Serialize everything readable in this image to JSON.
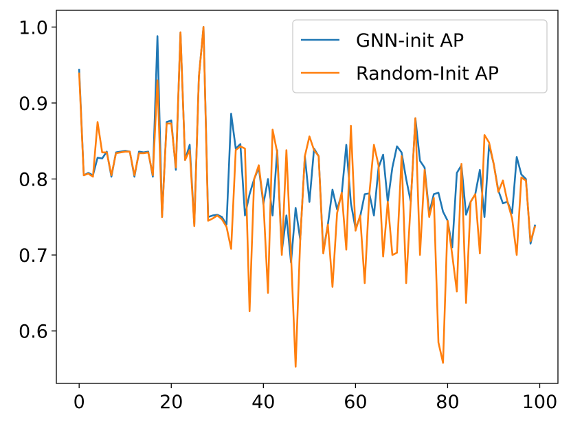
{
  "chart_data": {
    "type": "line",
    "x": [
      0,
      1,
      2,
      3,
      4,
      5,
      6,
      7,
      8,
      9,
      10,
      11,
      12,
      13,
      14,
      15,
      16,
      17,
      18,
      19,
      20,
      21,
      22,
      23,
      24,
      25,
      26,
      27,
      28,
      29,
      30,
      31,
      32,
      33,
      34,
      35,
      36,
      37,
      38,
      39,
      40,
      41,
      42,
      43,
      44,
      45,
      46,
      47,
      48,
      49,
      50,
      51,
      52,
      53,
      54,
      55,
      56,
      57,
      58,
      59,
      60,
      61,
      62,
      63,
      64,
      65,
      66,
      67,
      68,
      69,
      70,
      71,
      72,
      73,
      74,
      75,
      76,
      77,
      78,
      79,
      80,
      81,
      82,
      83,
      84,
      85,
      86,
      87,
      88,
      89,
      90,
      91,
      92,
      93,
      94,
      95,
      96,
      97,
      98,
      99
    ],
    "series": [
      {
        "name": "GNN-init AP",
        "color": "#1f77b4",
        "values": [
          0.945,
          0.805,
          0.808,
          0.805,
          0.828,
          0.827,
          0.836,
          0.803,
          0.835,
          0.836,
          0.837,
          0.836,
          0.803,
          0.836,
          0.835,
          0.836,
          0.803,
          0.988,
          0.75,
          0.875,
          0.877,
          0.812,
          0.993,
          0.825,
          0.845,
          0.74,
          0.935,
          1.0,
          0.75,
          0.752,
          0.753,
          0.75,
          0.74,
          0.886,
          0.84,
          0.846,
          0.752,
          0.78,
          0.8,
          0.815,
          0.767,
          0.8,
          0.752,
          0.838,
          0.705,
          0.752,
          0.69,
          0.762,
          0.72,
          0.83,
          0.77,
          0.84,
          0.83,
          0.705,
          0.74,
          0.786,
          0.76,
          0.78,
          0.845,
          0.768,
          0.735,
          0.75,
          0.78,
          0.781,
          0.752,
          0.815,
          0.832,
          0.77,
          0.815,
          0.843,
          0.835,
          0.8,
          0.77,
          0.88,
          0.824,
          0.815,
          0.755,
          0.78,
          0.782,
          0.757,
          0.745,
          0.71,
          0.808,
          0.818,
          0.753,
          0.77,
          0.78,
          0.812,
          0.75,
          0.845,
          0.82,
          0.785,
          0.768,
          0.77,
          0.755,
          0.829,
          0.806,
          0.8,
          0.715,
          0.74
        ]
      },
      {
        "name": "Random-Init AP",
        "color": "#ff7f0e",
        "values": [
          0.94,
          0.805,
          0.807,
          0.803,
          0.875,
          0.835,
          0.835,
          0.805,
          0.834,
          0.835,
          0.836,
          0.836,
          0.805,
          0.834,
          0.834,
          0.835,
          0.805,
          0.93,
          0.75,
          0.873,
          0.873,
          0.815,
          0.993,
          0.825,
          0.838,
          0.738,
          0.935,
          1.0,
          0.745,
          0.748,
          0.752,
          0.747,
          0.737,
          0.708,
          0.838,
          0.843,
          0.84,
          0.626,
          0.8,
          0.818,
          0.77,
          0.65,
          0.865,
          0.835,
          0.7,
          0.838,
          0.7,
          0.553,
          0.72,
          0.83,
          0.856,
          0.838,
          0.83,
          0.702,
          0.74,
          0.658,
          0.755,
          0.782,
          0.707,
          0.87,
          0.732,
          0.752,
          0.663,
          0.78,
          0.845,
          0.818,
          0.698,
          0.77,
          0.7,
          0.703,
          0.83,
          0.663,
          0.77,
          0.88,
          0.7,
          0.812,
          0.75,
          0.775,
          0.585,
          0.558,
          0.745,
          0.7,
          0.652,
          0.82,
          0.637,
          0.77,
          0.78,
          0.702,
          0.858,
          0.848,
          0.82,
          0.783,
          0.798,
          0.77,
          0.748,
          0.7,
          0.802,
          0.798,
          0.718,
          0.738
        ]
      }
    ],
    "xlim": [
      -4.95,
      103.95
    ],
    "xticks": [
      0,
      20,
      40,
      60,
      80,
      100
    ],
    "ylim": [
      0.531,
      1.022
    ],
    "yticks": [
      0.6,
      0.7,
      0.8,
      0.9,
      {
        "value": 1,
        "label": "1.0"
      }
    ],
    "legend": "upper right",
    "grid": false
  }
}
